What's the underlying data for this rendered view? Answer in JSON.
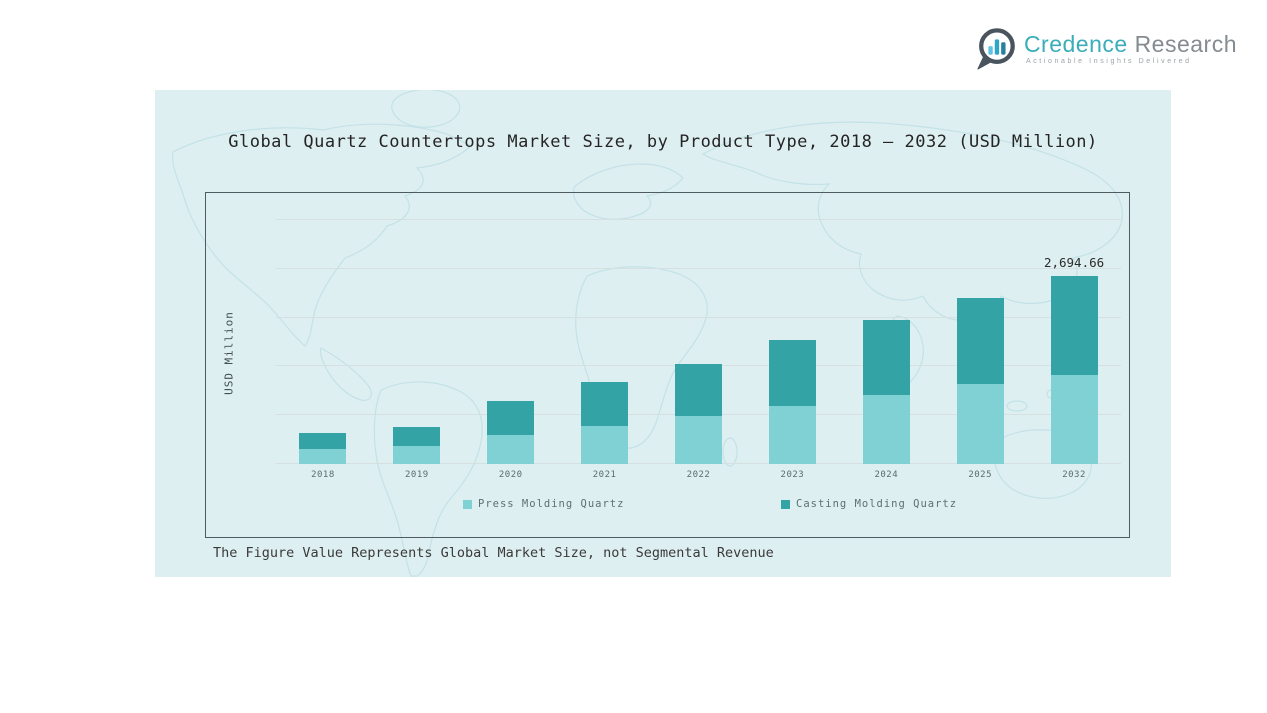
{
  "logo": {
    "brand_primary": "Credence",
    "brand_secondary": "Research",
    "tagline": "Actionable Insights Delivered",
    "icon": "bar-chart-speech-bubble-icon",
    "colors": {
      "brand_primary": "#3badba",
      "brand_secondary": "#848c92",
      "icon_outline": "#49545e",
      "icon_bars": [
        "#60c3e4",
        "#30a6c6",
        "#27809f"
      ]
    }
  },
  "panel": {
    "title": "Global Quartz Countertops Market Size, by Product Type, 2018 – 2032 (USD Million)",
    "note": "The Figure Value Represents Global Market Size, not Segmental Revenue",
    "background_color": "#deeff1",
    "map_line_color": "#c3e2e7"
  },
  "chart_data": {
    "type": "bar",
    "stacked": true,
    "title": "Global Quartz Countertops Market Size, by Product Type, 2018 – 2032 (USD Million)",
    "categories": [
      "2018",
      "2019",
      "2020",
      "2021",
      "2022",
      "2023",
      "2024",
      "2025",
      "2032"
    ],
    "series": [
      {
        "name": "Press Molding Quartz",
        "color": "#7fd1d3",
        "values": [
          210,
          258,
          422,
          551,
          695,
          838,
          996,
          1148,
          1283
        ]
      },
      {
        "name": "Casting Molding Quartz",
        "color": "#33a3a5",
        "values": [
          240,
          268,
          478,
          622,
          741,
          938,
          1077,
          1227,
          1411.66
        ]
      }
    ],
    "totals": [
      450,
      526,
      900,
      1173,
      1436,
      1776,
      2073,
      2375,
      2694.66
    ],
    "xlabel": "",
    "ylabel": "USD Million",
    "ylim": [
      0,
      3500
    ],
    "grid": true,
    "grid_interval": 700,
    "y_tick_labels_shown": false,
    "legend_position": "bottom",
    "annotations": [
      {
        "category": "2032",
        "text": "2,694.66",
        "value": 2694.66
      }
    ]
  }
}
